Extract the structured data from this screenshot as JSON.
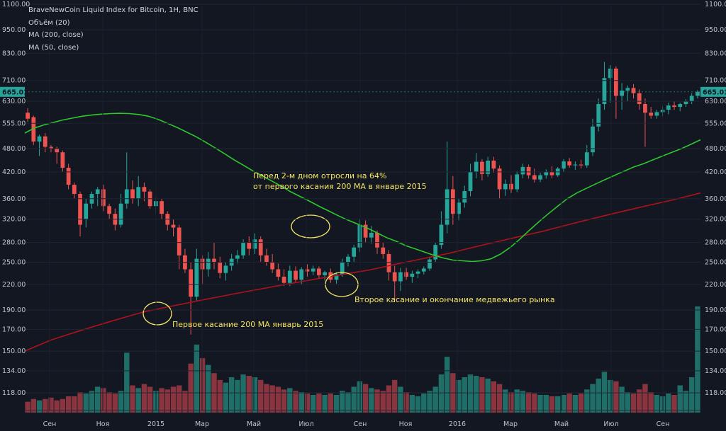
{
  "legend": {
    "title": "BraveNewCoin Liquid Index for Bitcoin, 1H, BNC",
    "volume": "Объём (20)",
    "ma200": "MA (200, close)",
    "ma50": "MA (50, close)"
  },
  "annotations": {
    "note1_line1": "Перед 2-м дном отросли на 64%",
    "note1_line2": "от первого касания 200 MA в январе 2015",
    "note2": "Второе касание и окончание медвежьего рынка",
    "note3": "Первое касание 200 MA январь 2015"
  },
  "colors": {
    "background": "#131722",
    "up": "#26a69a",
    "down": "#ef5350",
    "ma50": "#2ec72e",
    "ma200": "#b0121b",
    "vol_up": "#1f6f68",
    "vol_down": "#8a3440",
    "annotation": "#f5e663",
    "price_badge": "#26a69a"
  },
  "chart_data": {
    "type": "candlestick",
    "title": "BraveNewCoin Liquid Index for Bitcoin, 1H, BNC",
    "y_scale": "log",
    "ylim": [
      112,
      1100
    ],
    "y_ticks": [
      1100,
      950,
      830,
      710,
      630,
      555,
      480,
      420,
      360,
      320,
      280,
      250,
      220,
      190,
      170,
      150,
      134,
      118
    ],
    "y_tick_labels": [
      "1100.00",
      "950.00",
      "830.00",
      "710.00",
      "630.00",
      "555.00",
      "480.00",
      "420.00",
      "360.00",
      "320.00",
      "280.00",
      "250.00",
      "220.00",
      "190.00",
      "170.00",
      "150.00",
      "134.00",
      "118.00"
    ],
    "x_labels": [
      "Сен",
      "Ноя",
      "2015",
      "Мар",
      "Май",
      "Июл",
      "Сен",
      "Ноя",
      "2016",
      "Мар",
      "Май",
      "Июл",
      "Сен"
    ],
    "current_price": "665.01",
    "price_series": [
      {
        "open": 590,
        "high": 605,
        "low": 560,
        "close": 570,
        "volume": 118
      },
      {
        "open": 575,
        "high": 580,
        "low": 490,
        "close": 500,
        "volume": 120
      },
      {
        "open": 500,
        "high": 520,
        "low": 460,
        "close": 515,
        "volume": 119
      },
      {
        "open": 515,
        "high": 525,
        "low": 470,
        "close": 485,
        "volume": 120
      },
      {
        "open": 485,
        "high": 490,
        "low": 470,
        "close": 480,
        "volume": 121
      },
      {
        "open": 480,
        "high": 485,
        "low": 440,
        "close": 470,
        "volume": 119
      },
      {
        "open": 470,
        "high": 475,
        "low": 420,
        "close": 430,
        "volume": 120
      },
      {
        "open": 430,
        "high": 440,
        "low": 380,
        "close": 390,
        "volume": 122
      },
      {
        "open": 390,
        "high": 395,
        "low": 360,
        "close": 370,
        "volume": 122
      },
      {
        "open": 370,
        "high": 375,
        "low": 290,
        "close": 310,
        "volume": 125
      },
      {
        "open": 320,
        "high": 360,
        "low": 305,
        "close": 350,
        "volume": 124
      },
      {
        "open": 350,
        "high": 375,
        "low": 340,
        "close": 370,
        "volume": 126
      },
      {
        "open": 370,
        "high": 385,
        "low": 345,
        "close": 380,
        "volume": 129
      },
      {
        "open": 380,
        "high": 390,
        "low": 335,
        "close": 345,
        "volume": 128
      },
      {
        "open": 345,
        "high": 350,
        "low": 320,
        "close": 330,
        "volume": 125
      },
      {
        "open": 330,
        "high": 340,
        "low": 300,
        "close": 310,
        "volume": 124
      },
      {
        "open": 310,
        "high": 370,
        "low": 305,
        "close": 350,
        "volume": 126
      },
      {
        "open": 350,
        "high": 470,
        "low": 340,
        "close": 380,
        "volume": 154
      },
      {
        "open": 380,
        "high": 400,
        "low": 350,
        "close": 360,
        "volume": 130
      },
      {
        "open": 360,
        "high": 410,
        "low": 345,
        "close": 385,
        "volume": 128
      },
      {
        "open": 385,
        "high": 395,
        "low": 355,
        "close": 375,
        "volume": 131
      },
      {
        "open": 375,
        "high": 380,
        "low": 340,
        "close": 345,
        "volume": 129
      },
      {
        "open": 345,
        "high": 365,
        "low": 330,
        "close": 355,
        "volume": 126
      },
      {
        "open": 355,
        "high": 360,
        "low": 320,
        "close": 330,
        "volume": 128
      },
      {
        "open": 330,
        "high": 335,
        "low": 300,
        "close": 310,
        "volume": 127
      },
      {
        "open": 310,
        "high": 320,
        "low": 290,
        "close": 305,
        "volume": 129
      },
      {
        "open": 305,
        "high": 310,
        "low": 240,
        "close": 260,
        "volume": 130
      },
      {
        "open": 260,
        "high": 270,
        "low": 235,
        "close": 240,
        "volume": 126
      },
      {
        "open": 240,
        "high": 250,
        "low": 165,
        "close": 205,
        "volume": 146
      },
      {
        "open": 205,
        "high": 270,
        "low": 200,
        "close": 255,
        "volume": 160
      },
      {
        "open": 255,
        "high": 260,
        "low": 220,
        "close": 240,
        "volume": 150
      },
      {
        "open": 240,
        "high": 265,
        "low": 230,
        "close": 255,
        "volume": 145
      },
      {
        "open": 255,
        "high": 280,
        "low": 240,
        "close": 250,
        "volume": 139
      },
      {
        "open": 250,
        "high": 258,
        "low": 228,
        "close": 235,
        "volume": 134
      },
      {
        "open": 235,
        "high": 250,
        "low": 225,
        "close": 245,
        "volume": 132
      },
      {
        "open": 245,
        "high": 262,
        "low": 238,
        "close": 255,
        "volume": 136
      },
      {
        "open": 255,
        "high": 268,
        "low": 248,
        "close": 260,
        "volume": 134
      },
      {
        "open": 260,
        "high": 285,
        "low": 255,
        "close": 280,
        "volume": 138
      },
      {
        "open": 280,
        "high": 290,
        "low": 260,
        "close": 270,
        "volume": 137
      },
      {
        "open": 270,
        "high": 295,
        "low": 262,
        "close": 285,
        "volume": 136
      },
      {
        "open": 285,
        "high": 290,
        "low": 250,
        "close": 260,
        "volume": 134
      },
      {
        "open": 260,
        "high": 270,
        "low": 245,
        "close": 250,
        "volume": 131
      },
      {
        "open": 250,
        "high": 262,
        "low": 235,
        "close": 240,
        "volume": 130
      },
      {
        "open": 240,
        "high": 248,
        "low": 225,
        "close": 230,
        "volume": 129
      },
      {
        "open": 230,
        "high": 240,
        "low": 218,
        "close": 222,
        "volume": 127
      },
      {
        "open": 222,
        "high": 245,
        "low": 218,
        "close": 238,
        "volume": 128
      },
      {
        "open": 238,
        "high": 244,
        "low": 222,
        "close": 226,
        "volume": 126
      },
      {
        "open": 226,
        "high": 243,
        "low": 220,
        "close": 240,
        "volume": 125
      },
      {
        "open": 240,
        "high": 247,
        "low": 230,
        "close": 237,
        "volume": 124
      },
      {
        "open": 237,
        "high": 245,
        "low": 232,
        "close": 241,
        "volume": 123
      },
      {
        "open": 241,
        "high": 244,
        "low": 228,
        "close": 232,
        "volume": 124
      },
      {
        "open": 232,
        "high": 238,
        "low": 225,
        "close": 236,
        "volume": 123
      },
      {
        "open": 236,
        "high": 241,
        "low": 222,
        "close": 226,
        "volume": 124
      },
      {
        "open": 226,
        "high": 236,
        "low": 221,
        "close": 233,
        "volume": 123
      },
      {
        "open": 233,
        "high": 255,
        "low": 230,
        "close": 250,
        "volume": 126
      },
      {
        "open": 250,
        "high": 262,
        "low": 244,
        "close": 258,
        "volume": 125
      },
      {
        "open": 258,
        "high": 276,
        "low": 250,
        "close": 272,
        "volume": 129
      },
      {
        "open": 272,
        "high": 320,
        "low": 265,
        "close": 310,
        "volume": 133
      },
      {
        "open": 310,
        "high": 318,
        "low": 280,
        "close": 288,
        "volume": 131
      },
      {
        "open": 288,
        "high": 308,
        "low": 278,
        "close": 296,
        "volume": 128
      },
      {
        "open": 296,
        "high": 300,
        "low": 262,
        "close": 272,
        "volume": 127
      },
      {
        "open": 272,
        "high": 280,
        "low": 255,
        "close": 262,
        "volume": 126
      },
      {
        "open": 262,
        "high": 268,
        "low": 225,
        "close": 236,
        "volume": 130
      },
      {
        "open": 236,
        "high": 245,
        "low": 200,
        "close": 224,
        "volume": 134
      },
      {
        "open": 224,
        "high": 242,
        "low": 212,
        "close": 236,
        "volume": 129
      },
      {
        "open": 236,
        "high": 242,
        "low": 226,
        "close": 230,
        "volume": 125
      },
      {
        "open": 230,
        "high": 238,
        "low": 222,
        "close": 234,
        "volume": 123
      },
      {
        "open": 234,
        "high": 240,
        "low": 228,
        "close": 237,
        "volume": 122
      },
      {
        "open": 237,
        "high": 244,
        "low": 233,
        "close": 241,
        "volume": 124
      },
      {
        "open": 241,
        "high": 258,
        "low": 238,
        "close": 254,
        "volume": 126
      },
      {
        "open": 254,
        "high": 280,
        "low": 250,
        "close": 276,
        "volume": 129
      },
      {
        "open": 276,
        "high": 335,
        "low": 270,
        "close": 310,
        "volume": 138
      },
      {
        "open": 310,
        "high": 500,
        "low": 295,
        "close": 380,
        "volume": 151
      },
      {
        "open": 380,
        "high": 410,
        "low": 310,
        "close": 330,
        "volume": 139
      },
      {
        "open": 330,
        "high": 360,
        "low": 318,
        "close": 352,
        "volume": 134
      },
      {
        "open": 352,
        "high": 388,
        "low": 342,
        "close": 376,
        "volume": 136
      },
      {
        "open": 376,
        "high": 440,
        "low": 365,
        "close": 420,
        "volume": 138
      },
      {
        "open": 420,
        "high": 468,
        "low": 405,
        "close": 445,
        "volume": 137
      },
      {
        "open": 445,
        "high": 452,
        "low": 400,
        "close": 415,
        "volume": 136
      },
      {
        "open": 415,
        "high": 458,
        "low": 408,
        "close": 448,
        "volume": 135
      },
      {
        "open": 448,
        "high": 458,
        "low": 418,
        "close": 428,
        "volume": 133
      },
      {
        "open": 428,
        "high": 436,
        "low": 360,
        "close": 380,
        "volume": 131
      },
      {
        "open": 380,
        "high": 402,
        "low": 366,
        "close": 392,
        "volume": 127
      },
      {
        "open": 392,
        "high": 412,
        "low": 372,
        "close": 380,
        "volume": 125
      },
      {
        "open": 380,
        "high": 422,
        "low": 374,
        "close": 414,
        "volume": 127
      },
      {
        "open": 414,
        "high": 440,
        "low": 405,
        "close": 432,
        "volume": 126
      },
      {
        "open": 432,
        "high": 438,
        "low": 404,
        "close": 412,
        "volume": 125
      },
      {
        "open": 412,
        "high": 428,
        "low": 395,
        "close": 402,
        "volume": 124
      },
      {
        "open": 402,
        "high": 418,
        "low": 396,
        "close": 412,
        "volume": 123
      },
      {
        "open": 412,
        "high": 426,
        "low": 404,
        "close": 420,
        "volume": 123
      },
      {
        "open": 420,
        "high": 434,
        "low": 405,
        "close": 412,
        "volume": 122
      },
      {
        "open": 412,
        "high": 432,
        "low": 408,
        "close": 428,
        "volume": 122
      },
      {
        "open": 428,
        "high": 452,
        "low": 420,
        "close": 446,
        "volume": 123
      },
      {
        "open": 446,
        "high": 455,
        "low": 430,
        "close": 436,
        "volume": 124
      },
      {
        "open": 436,
        "high": 446,
        "low": 425,
        "close": 438,
        "volume": 123
      },
      {
        "open": 438,
        "high": 450,
        "low": 428,
        "close": 436,
        "volume": 124
      },
      {
        "open": 436,
        "high": 490,
        "low": 430,
        "close": 470,
        "volume": 127
      },
      {
        "open": 470,
        "high": 570,
        "low": 460,
        "close": 545,
        "volume": 131
      },
      {
        "open": 545,
        "high": 640,
        "low": 530,
        "close": 620,
        "volume": 135
      },
      {
        "open": 620,
        "high": 790,
        "low": 600,
        "close": 720,
        "volume": 140
      },
      {
        "open": 720,
        "high": 775,
        "low": 625,
        "close": 760,
        "volume": 134
      },
      {
        "open": 760,
        "high": 770,
        "low": 570,
        "close": 650,
        "volume": 133
      },
      {
        "open": 650,
        "high": 700,
        "low": 600,
        "close": 670,
        "volume": 129
      },
      {
        "open": 670,
        "high": 690,
        "low": 630,
        "close": 680,
        "volume": 125
      },
      {
        "open": 680,
        "high": 695,
        "low": 640,
        "close": 660,
        "volume": 124
      },
      {
        "open": 660,
        "high": 675,
        "low": 600,
        "close": 620,
        "volume": 127
      },
      {
        "open": 620,
        "high": 640,
        "low": 485,
        "close": 590,
        "volume": 131
      },
      {
        "open": 590,
        "high": 610,
        "low": 570,
        "close": 580,
        "volume": 125
      },
      {
        "open": 580,
        "high": 600,
        "low": 570,
        "close": 592,
        "volume": 123
      },
      {
        "open": 592,
        "high": 612,
        "low": 578,
        "close": 600,
        "volume": 122
      },
      {
        "open": 600,
        "high": 625,
        "low": 585,
        "close": 615,
        "volume": 124
      },
      {
        "open": 615,
        "high": 630,
        "low": 600,
        "close": 610,
        "volume": 123
      },
      {
        "open": 610,
        "high": 625,
        "low": 595,
        "close": 620,
        "volume": 130
      },
      {
        "open": 620,
        "high": 638,
        "low": 610,
        "close": 630,
        "volume": 126
      },
      {
        "open": 630,
        "high": 660,
        "low": 620,
        "close": 650,
        "volume": 136
      },
      {
        "open": 650,
        "high": 672,
        "low": 640,
        "close": 665,
        "volume": 188
      }
    ],
    "ma50_series": [
      525,
      540,
      550,
      558,
      566,
      572,
      578,
      582,
      585,
      587,
      588,
      587,
      584,
      578,
      568,
      555,
      542,
      528,
      514,
      498,
      482,
      466,
      450,
      436,
      422,
      410,
      398,
      386,
      374,
      364,
      354,
      344,
      335,
      326,
      318,
      311,
      304,
      296,
      288,
      282,
      275,
      270,
      265,
      260,
      256,
      253,
      252,
      251,
      252,
      255,
      262,
      272,
      285,
      300,
      315,
      330,
      345,
      360,
      372,
      382,
      392,
      402,
      412,
      422,
      432,
      440,
      450,
      460,
      470,
      480,
      492,
      505
    ],
    "ma200_series": [
      150,
      155,
      160,
      164,
      168,
      172,
      176,
      180,
      184,
      188,
      191,
      194,
      197,
      200,
      203,
      206,
      209,
      212,
      215,
      218,
      221,
      224,
      227,
      230,
      233,
      236,
      239,
      243,
      247,
      251,
      255,
      259,
      263,
      268,
      273,
      278,
      283,
      288,
      293,
      298,
      304,
      310,
      316,
      322,
      328,
      334,
      340,
      346,
      352,
      358,
      365,
      372
    ],
    "series_names": [
      "MA (50, close)",
      "MA (200, close)",
      "Объём (20)"
    ]
  }
}
